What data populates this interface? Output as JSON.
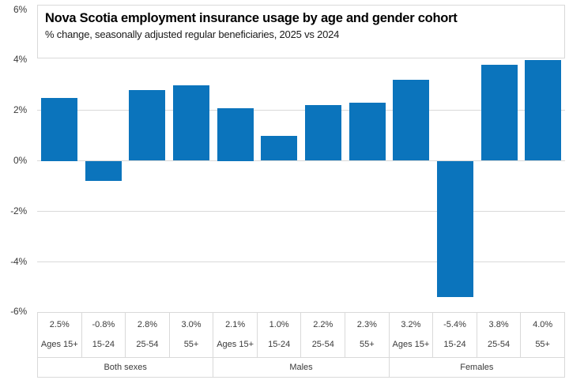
{
  "header": {
    "title": "Nova Scotia employment insurance usage by age and gender cohort",
    "subtitle": "% change, seasonally adjusted regular beneficiaries, 2025 vs 2024"
  },
  "y_axis": {
    "tick_labels": [
      "6%",
      "4%",
      "2%",
      "0%",
      "-2%",
      "-4%",
      "-6%"
    ],
    "tick_values": [
      6,
      4,
      2,
      0,
      -2,
      -4,
      -6
    ]
  },
  "colors": {
    "bar": "#0b74bc",
    "gridline": "#d9d9d9",
    "table_border": "#d9d9d9",
    "axis_text": "#3a3a3a",
    "title_text": "#000000"
  },
  "chart_data": {
    "type": "bar",
    "title": "Nova Scotia employment insurance usage by age and gender cohort",
    "subtitle": "% change, seasonally adjusted regular beneficiaries, 2025 vs 2024",
    "xlabel": "",
    "ylabel": "",
    "ylim": [
      -6,
      6
    ],
    "y_tick_step": 2,
    "grid": true,
    "legend": "none",
    "bar_color": "#0b74bc",
    "groups": [
      {
        "label": "Both sexes",
        "categories": [
          "Ages 15+",
          "15-24",
          "25-54",
          "55+"
        ],
        "values": [
          2.5,
          -0.8,
          2.8,
          3.0
        ],
        "display_values": [
          "2.5%",
          "-0.8%",
          "2.8%",
          "3.0%"
        ]
      },
      {
        "label": "Males",
        "categories": [
          "Ages 15+",
          "15-24",
          "25-54",
          "55+"
        ],
        "values": [
          2.1,
          1.0,
          2.2,
          2.3
        ],
        "display_values": [
          "2.1%",
          "1.0%",
          "2.2%",
          "2.3%"
        ]
      },
      {
        "label": "Females",
        "categories": [
          "Ages 15+",
          "15-24",
          "25-54",
          "55+"
        ],
        "values": [
          3.2,
          -5.4,
          3.8,
          4.0
        ],
        "display_values": [
          "3.2%",
          "-5.4%",
          "3.8%",
          "4.0%"
        ]
      }
    ]
  }
}
